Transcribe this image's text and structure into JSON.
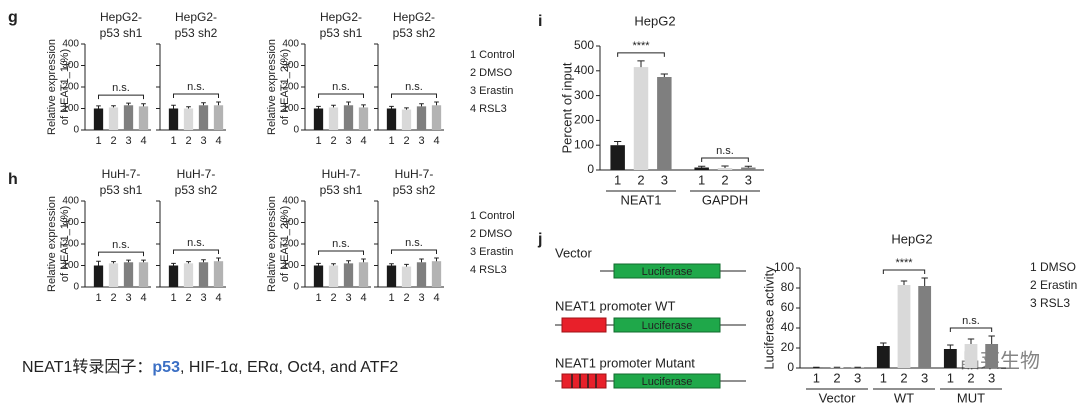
{
  "chart_data": [
    {
      "type": "bar",
      "panel": "g",
      "ylabel": [
        "Relative expression",
        "of NEAT1_1(%)"
      ],
      "ylim": [
        0,
        400
      ],
      "yticks": [
        0,
        100,
        200,
        300,
        400
      ],
      "colors": [
        "#1a1a1a",
        "#d9d9d9",
        "#7f7f7f",
        "#b3b3b3"
      ],
      "legend": [
        "1 Control",
        "2 DMSO",
        "3 Erastin",
        "4 RSL3"
      ],
      "panels": [
        {
          "title": [
            "HepG2-",
            "p53 sh1"
          ],
          "categories": [
            "1",
            "2",
            "3",
            "4"
          ],
          "values": [
            100,
            105,
            115,
            110
          ],
          "errors": [
            12,
            8,
            10,
            12
          ],
          "annotation": "n.s."
        },
        {
          "title": [
            "HepG2-",
            "p53 sh2"
          ],
          "categories": [
            "1",
            "2",
            "3",
            "4"
          ],
          "values": [
            100,
            100,
            115,
            115
          ],
          "errors": [
            15,
            8,
            12,
            15
          ],
          "annotation": "n.s."
        }
      ]
    },
    {
      "type": "bar",
      "ylabel": [
        "Relative expression",
        "of NEAT1_2(%)"
      ],
      "ylim": [
        0,
        400
      ],
      "yticks": [
        0,
        100,
        200,
        300,
        400
      ],
      "colors": [
        "#1a1a1a",
        "#d9d9d9",
        "#7f7f7f",
        "#b3b3b3"
      ],
      "panels": [
        {
          "title": [
            "HepG2-",
            "p53 sh1"
          ],
          "categories": [
            "1",
            "2",
            "3",
            "4"
          ],
          "values": [
            100,
            105,
            115,
            105
          ],
          "errors": [
            10,
            10,
            15,
            12
          ],
          "annotation": "n.s."
        },
        {
          "title": [
            "HepG2-",
            "p53 sh2"
          ],
          "categories": [
            "1",
            "2",
            "3",
            "4"
          ],
          "values": [
            100,
            95,
            110,
            115
          ],
          "errors": [
            10,
            8,
            12,
            15
          ],
          "annotation": "n.s."
        }
      ]
    },
    {
      "type": "bar",
      "panel": "h",
      "ylabel": [
        "Relative expression",
        "of NEAT1_1(%)"
      ],
      "ylim": [
        0,
        400
      ],
      "yticks": [
        0,
        100,
        200,
        300,
        400
      ],
      "colors": [
        "#1a1a1a",
        "#d9d9d9",
        "#7f7f7f",
        "#b3b3b3"
      ],
      "legend": [
        "1 Control",
        "2 DMSO",
        "3 Erastin",
        "4 RSL3"
      ],
      "panels": [
        {
          "title": [
            "HuH-7-",
            "p53 sh1"
          ],
          "categories": [
            "1",
            "2",
            "3",
            "4"
          ],
          "values": [
            100,
            110,
            115,
            115
          ],
          "errors": [
            20,
            8,
            10,
            10
          ],
          "annotation": "n.s."
        },
        {
          "title": [
            "HuH-7-",
            "p53 sh2"
          ],
          "categories": [
            "1",
            "2",
            "3",
            "4"
          ],
          "values": [
            100,
            110,
            115,
            120
          ],
          "errors": [
            10,
            8,
            12,
            15
          ],
          "annotation": "n.s."
        }
      ]
    },
    {
      "type": "bar",
      "ylabel": [
        "Relative expression",
        "of NEAT1_2(%)"
      ],
      "ylim": [
        0,
        400
      ],
      "yticks": [
        0,
        100,
        200,
        300,
        400
      ],
      "colors": [
        "#1a1a1a",
        "#d9d9d9",
        "#7f7f7f",
        "#b3b3b3"
      ],
      "panels": [
        {
          "title": [
            "HuH-7-",
            "p53 sh1"
          ],
          "categories": [
            "1",
            "2",
            "3",
            "4"
          ],
          "values": [
            100,
            100,
            110,
            115
          ],
          "errors": [
            10,
            8,
            12,
            15
          ],
          "annotation": "n.s."
        },
        {
          "title": [
            "HuH-7-",
            "p53 sh2"
          ],
          "categories": [
            "1",
            "2",
            "3",
            "4"
          ],
          "values": [
            100,
            95,
            115,
            120
          ],
          "errors": [
            8,
            10,
            15,
            15
          ],
          "annotation": "n.s."
        }
      ]
    },
    {
      "type": "bar",
      "panel": "i",
      "title": "HepG2",
      "ylabel": [
        "Percent of input"
      ],
      "ylim": [
        0,
        500
      ],
      "yticks": [
        0,
        100,
        200,
        300,
        400,
        500
      ],
      "colors": [
        "#1a1a1a",
        "#d9d9d9",
        "#7f7f7f"
      ],
      "panels": [
        {
          "group": "NEAT1",
          "categories": [
            "1",
            "2",
            "3"
          ],
          "values": [
            100,
            415,
            375
          ],
          "errors": [
            15,
            25,
            12
          ],
          "annotation": "****"
        },
        {
          "group": "GAPDH",
          "categories": [
            "1",
            "2",
            "3"
          ],
          "values": [
            10,
            8,
            10
          ],
          "errors": [
            5,
            8,
            5
          ],
          "annotation": "n.s."
        }
      ]
    },
    {
      "type": "bar",
      "panel": "j",
      "title": "HepG2",
      "ylabel": [
        "Luciferase activity"
      ],
      "ylim": [
        0,
        100
      ],
      "yticks": [
        0,
        20,
        40,
        60,
        80,
        100
      ],
      "colors": [
        "#1a1a1a",
        "#d9d9d9",
        "#7f7f7f"
      ],
      "legend": [
        "1 DMSO",
        "2 Erastin",
        "3 RSL3"
      ],
      "panels": [
        {
          "group": "Vector",
          "categories": [
            "1",
            "2",
            "3"
          ],
          "values": [
            0.5,
            0.5,
            0.5
          ],
          "errors": [
            0.3,
            0.3,
            0.3
          ]
        },
        {
          "group": "WT",
          "categories": [
            "1",
            "2",
            "3"
          ],
          "values": [
            22,
            83,
            82
          ],
          "errors": [
            3,
            4,
            8
          ],
          "annotation": "****"
        },
        {
          "group": "MUT",
          "categories": [
            "1",
            "2",
            "3"
          ],
          "values": [
            19,
            24,
            24
          ],
          "errors": [
            4,
            5,
            8
          ],
          "annotation": "n.s."
        }
      ]
    }
  ],
  "diagram": {
    "vector": "Vector",
    "luciferase": "Luciferase",
    "wt": "NEAT1 promoter WT",
    "mutant": "NEAT1 promoter Mutant"
  },
  "caption": {
    "lead": "NEAT1转录因子：",
    "highlight": "p53",
    "rest": ", HIF-1α, ERα, Oct4, and ATF2"
  },
  "watermark": "晶莱生物"
}
